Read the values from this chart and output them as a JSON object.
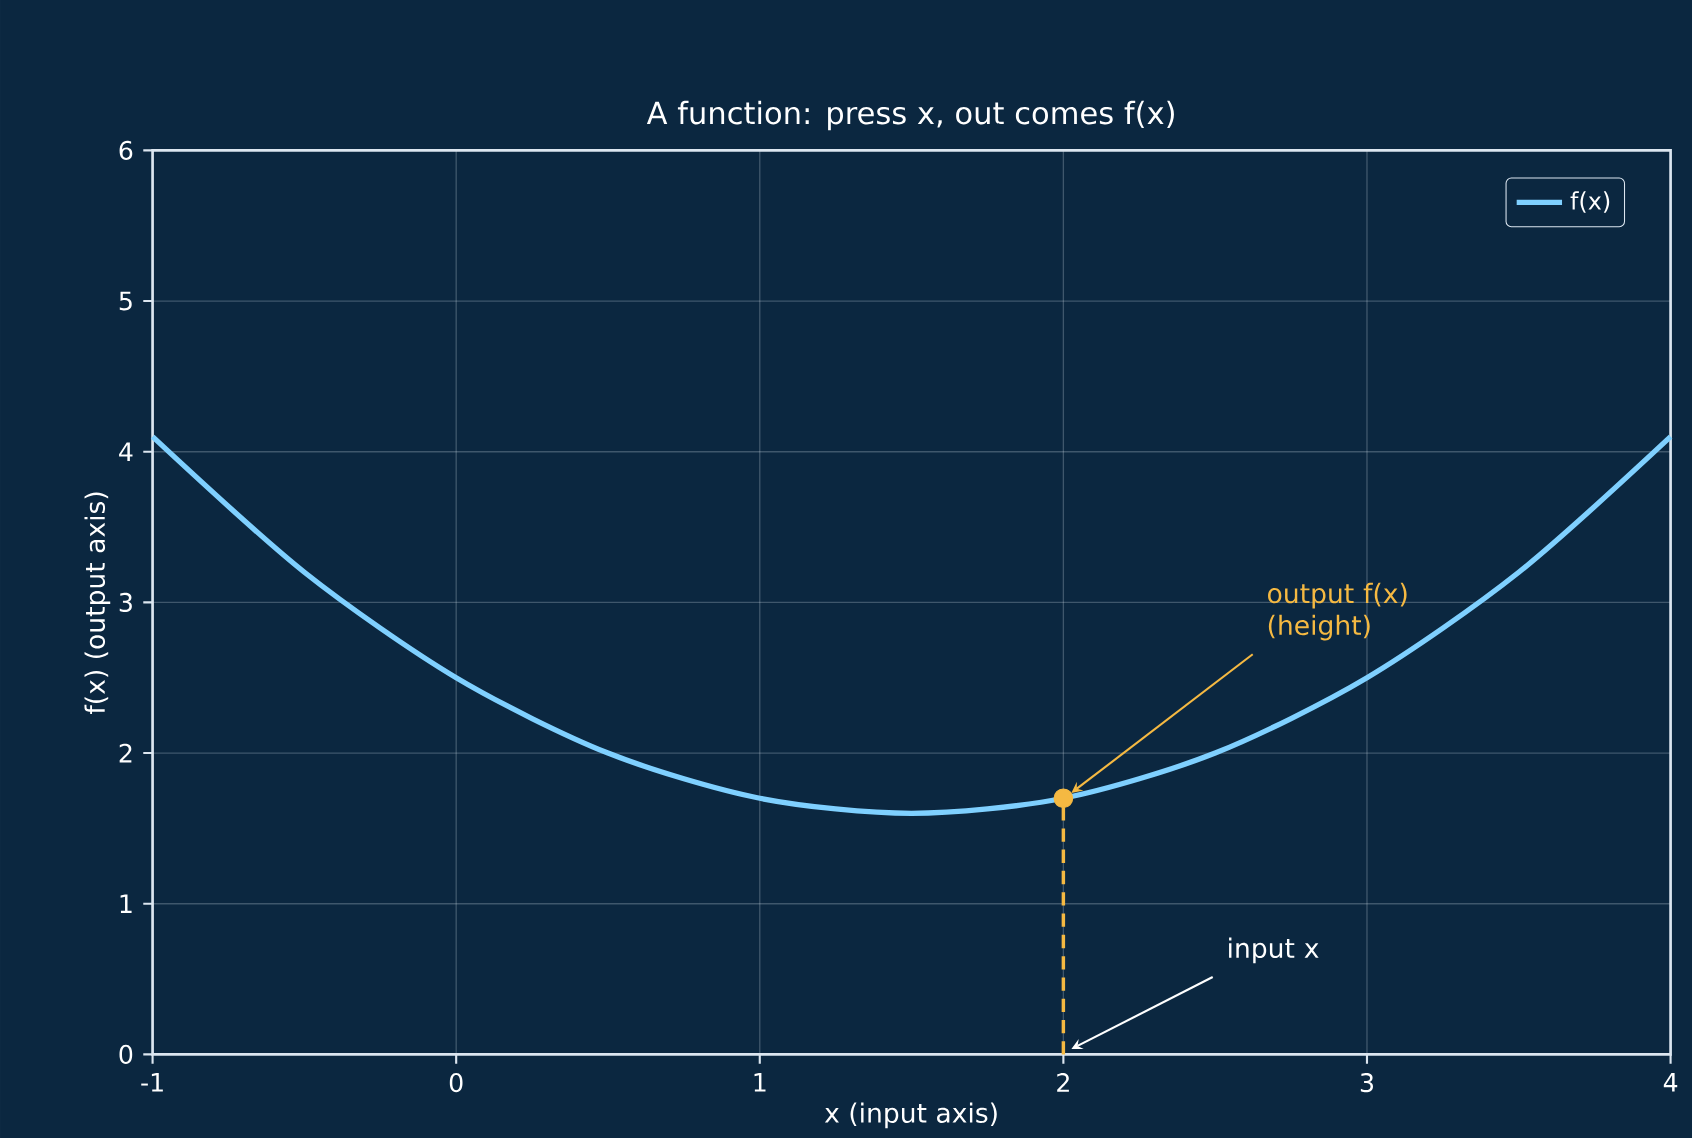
{
  "chart_data": {
    "type": "line",
    "title": "A function: press x, out comes f(x)",
    "xlabel": "x  (input axis)",
    "ylabel": "f(x)  (output axis)",
    "xlim": [
      -1,
      4
    ],
    "ylim": [
      0,
      6
    ],
    "xticks": [
      -1,
      0,
      1,
      2,
      3,
      4
    ],
    "yticks": [
      0,
      1,
      2,
      3,
      4,
      5,
      6
    ],
    "grid": true,
    "legend": "top right",
    "series": [
      {
        "name": "f(x)",
        "color": "#7fd0ff",
        "x": [
          -1,
          -0.5,
          0,
          0.5,
          1,
          1.5,
          2,
          2.5,
          3,
          3.5,
          4
        ],
        "values": [
          4.1,
          3.2,
          2.5,
          2.0,
          1.7,
          1.6,
          1.7,
          2.0,
          2.5,
          3.2,
          4.1
        ]
      },
      {
        "type": "line",
        "color": "#f5b942",
        "line_style": "dashed",
        "x": [
          2,
          2
        ],
        "values": [
          0,
          1.7
        ]
      },
      {
        "type": "scatter",
        "color": "#f5b942",
        "x": [
          2
        ],
        "values": [
          1.7
        ]
      }
    ],
    "annotations": [
      {
        "text": "output f(x) (height)",
        "x": 2,
        "y": 1.7
      },
      {
        "text": "input x",
        "x": 2,
        "y": 0
      }
    ]
  }
}
